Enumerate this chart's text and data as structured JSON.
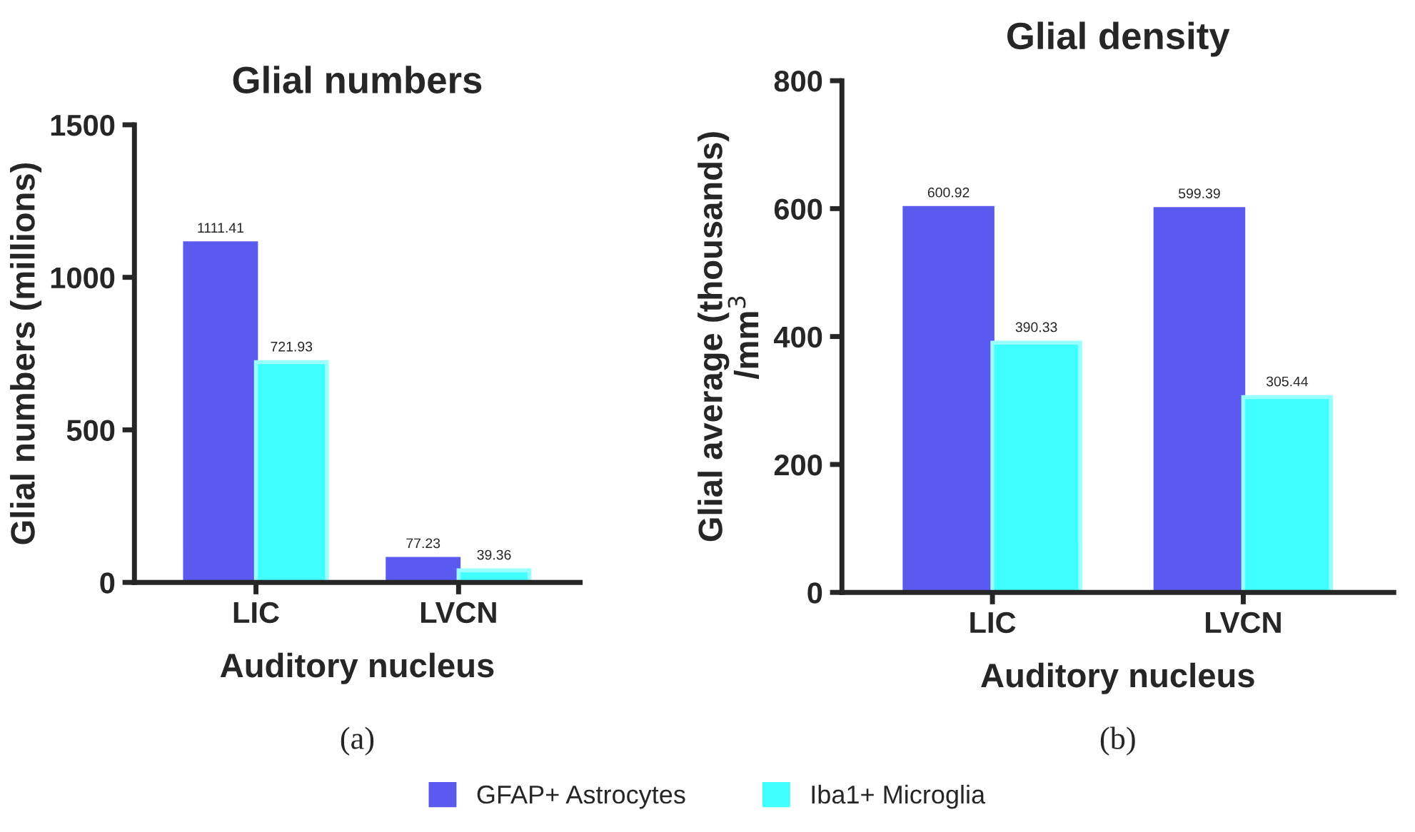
{
  "chart_data": [
    {
      "type": "bar",
      "title": "Glial numbers",
      "xlabel": "Auditory nucleus",
      "ylabel": "Glial numbers (millions)",
      "categories": [
        "LIC",
        "LVCN"
      ],
      "series": [
        {
          "name": "GFAP+ Astrocytes",
          "color": "#5a5af0",
          "values": [
            1111.41,
            77.23
          ]
        },
        {
          "name": "Iba1+ Microglia",
          "color": "#40ffff",
          "values": [
            721.93,
            39.36
          ]
        }
      ],
      "ylim": [
        0,
        1500
      ],
      "yticks": [
        0,
        500,
        1000,
        1500
      ],
      "data_labels": true,
      "grid": false,
      "legend": "bottom",
      "annotations": [
        "(a)"
      ]
    },
    {
      "type": "bar",
      "title": "Glial density",
      "xlabel": "Auditory nucleus",
      "ylabel": "Glial average (thousands)\n/mm$^{3}$",
      "categories": [
        "LIC",
        "LVCN"
      ],
      "series": [
        {
          "name": "GFAP+ Astrocytes",
          "color": "#5a5af0",
          "values": [
            600.92,
            599.39
          ]
        },
        {
          "name": "Iba1+ Microglia",
          "color": "#40ffff",
          "values": [
            390.33,
            305.44
          ]
        }
      ],
      "ylim": [
        0,
        800
      ],
      "yticks": [
        0,
        200,
        400,
        600,
        800
      ],
      "data_labels": true,
      "grid": false,
      "legend": "bottom",
      "annotations": [
        "(b)"
      ]
    }
  ]
}
